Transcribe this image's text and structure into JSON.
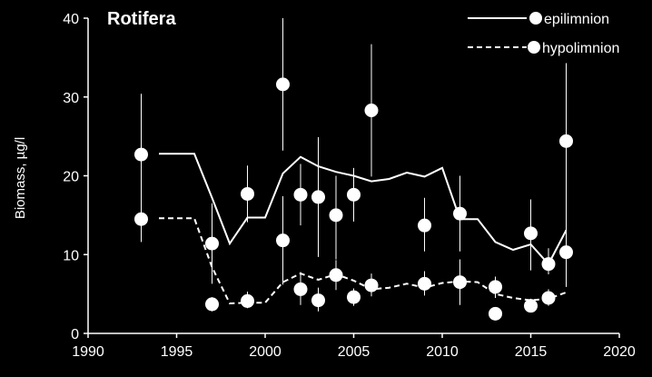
{
  "chart_data": {
    "type": "scatter",
    "title": "Rotifera",
    "xlabel": "",
    "ylabel": "Biomass, µg/l",
    "xlim": [
      1990,
      2020
    ],
    "ylim": [
      0,
      40
    ],
    "xticks": [
      1990,
      1995,
      2000,
      2005,
      2010,
      2015,
      2020
    ],
    "yticks": [
      0,
      10,
      20,
      30,
      40
    ],
    "legend_position": "top-right",
    "colors": {
      "background": "#000000",
      "foreground": "#ffffff"
    },
    "series": [
      {
        "name": "epilimnion",
        "line_style": "solid",
        "line": {
          "x": [
            1994,
            1996,
            1997,
            1998,
            1999,
            2000,
            2001,
            2002,
            2003,
            2004,
            2005,
            2006,
            2007,
            2008,
            2009,
            2010,
            2011,
            2012,
            2013,
            2014,
            2015,
            2016,
            2017
          ],
          "y": [
            22.8,
            22.8,
            17.2,
            11.4,
            14.7,
            14.7,
            20.3,
            22.4,
            21.2,
            20.5,
            20.0,
            19.3,
            19.6,
            20.4,
            19.9,
            21.0,
            14.5,
            14.5,
            11.6,
            10.6,
            11.3,
            8.8,
            13.1
          ]
        },
        "points": [
          {
            "x": 1993,
            "y": 22.7,
            "err_low": 15.0,
            "err_high": 30.4
          },
          {
            "x": 1997,
            "y": 11.4,
            "err_low": 6.3,
            "err_high": 16.5
          },
          {
            "x": 1999,
            "y": 17.7,
            "err_low": 14.1,
            "err_high": 21.3
          },
          {
            "x": 2001,
            "y": 31.6,
            "err_low": 23.2,
            "err_high": 40.0
          },
          {
            "x": 2002,
            "y": 17.6,
            "err_low": 13.7,
            "err_high": 21.5
          },
          {
            "x": 2003,
            "y": 17.3,
            "err_low": 9.7,
            "err_high": 24.9
          },
          {
            "x": 2004,
            "y": 15.0,
            "err_low": 9.4,
            "err_high": 20.0
          },
          {
            "x": 2005,
            "y": 17.6,
            "err_low": 14.2,
            "err_high": 21.0
          },
          {
            "x": 2006,
            "y": 28.3,
            "err_low": 19.9,
            "err_high": 36.7
          },
          {
            "x": 2009,
            "y": 13.7,
            "err_low": 10.4,
            "err_high": 17.2
          },
          {
            "x": 2011,
            "y": 15.2,
            "err_low": 10.4,
            "err_high": 20.0
          },
          {
            "x": 2015,
            "y": 12.7,
            "err_low": 8.0,
            "err_high": 17.0
          },
          {
            "x": 2016,
            "y": 8.8,
            "err_low": 7.5,
            "err_high": 10.8
          },
          {
            "x": 2017,
            "y": 24.4,
            "err_low": 14.5,
            "err_high": 34.3
          }
        ]
      },
      {
        "name": "hypolimnion",
        "line_style": "dashed",
        "line": {
          "x": [
            1994,
            1996,
            1997,
            1998,
            1999,
            2000,
            2001,
            2002,
            2003,
            2004,
            2005,
            2006,
            2007,
            2008,
            2009,
            2010,
            2011,
            2012,
            2013,
            2014,
            2015,
            2016,
            2017
          ],
          "y": [
            14.6,
            14.6,
            8.4,
            3.8,
            3.9,
            3.9,
            6.5,
            7.6,
            6.8,
            7.5,
            6.7,
            5.6,
            5.8,
            6.3,
            5.8,
            6.4,
            6.6,
            6.5,
            5.0,
            4.5,
            4.2,
            4.4,
            5.2
          ]
        },
        "points": [
          {
            "x": 1993,
            "y": 14.5,
            "err_low": 11.6,
            "err_high": 17.5
          },
          {
            "x": 1997,
            "y": 3.7,
            "err_low": 2.8,
            "err_high": 4.6
          },
          {
            "x": 1999,
            "y": 4.1,
            "err_low": 3.2,
            "err_high": 5.3
          },
          {
            "x": 2001,
            "y": 11.8,
            "err_low": 6.2,
            "err_high": 17.4
          },
          {
            "x": 2002,
            "y": 5.6,
            "err_low": 3.6,
            "err_high": 7.8
          },
          {
            "x": 2003,
            "y": 4.2,
            "err_low": 2.8,
            "err_high": 5.8
          },
          {
            "x": 2004,
            "y": 7.4,
            "err_low": 5.5,
            "err_high": 9.3
          },
          {
            "x": 2005,
            "y": 4.6,
            "err_low": 3.5,
            "err_high": 5.7
          },
          {
            "x": 2006,
            "y": 6.1,
            "err_low": 4.7,
            "err_high": 7.6
          },
          {
            "x": 2009,
            "y": 6.3,
            "err_low": 4.8,
            "err_high": 7.9
          },
          {
            "x": 2011,
            "y": 6.5,
            "err_low": 3.6,
            "err_high": 9.4
          },
          {
            "x": 2013,
            "y": 5.9,
            "err_low": 4.5,
            "err_high": 7.2
          },
          {
            "x": 2013,
            "y": 2.5,
            "err_low": 2.0,
            "err_high": 3.0
          },
          {
            "x": 2015,
            "y": 3.5,
            "err_low": 2.7,
            "err_high": 4.4
          },
          {
            "x": 2016,
            "y": 4.5,
            "err_low": 3.5,
            "err_high": 5.6
          },
          {
            "x": 2017,
            "y": 10.3,
            "err_low": 5.9,
            "err_high": 14.6
          }
        ]
      }
    ]
  }
}
